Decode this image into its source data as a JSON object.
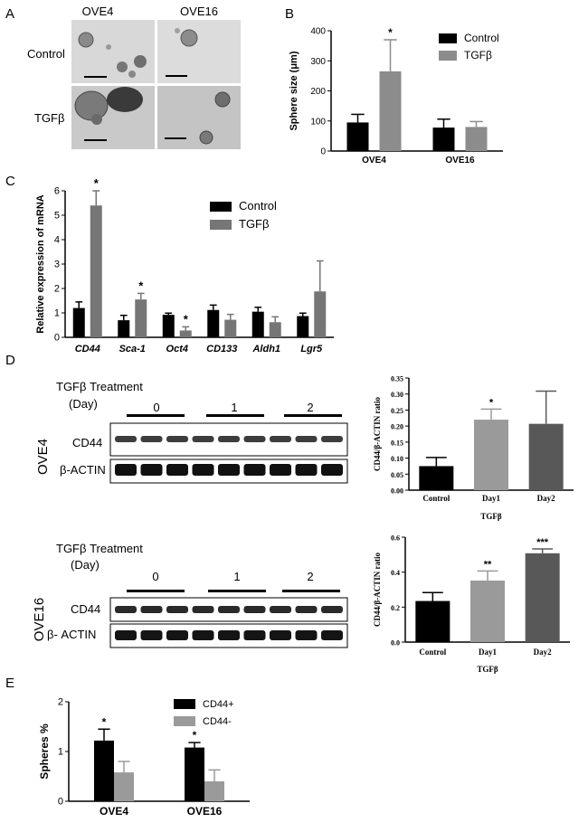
{
  "panel_letters": [
    "A",
    "B",
    "C",
    "D",
    "E"
  ],
  "panelA": {
    "columns": [
      "OVE4",
      "OVE16"
    ],
    "rows": [
      "Control",
      "TGFβ"
    ]
  },
  "panelD": {
    "top": {
      "cell_line": "OVE4",
      "treatment_label": "TGFβ Treatment",
      "day_label": "(Day)",
      "days": [
        "0",
        "1",
        "2"
      ],
      "bands": [
        "CD44",
        "β-ACTIN"
      ]
    },
    "bottom": {
      "cell_line": "OVE16",
      "treatment_label": "TGFβ Treatment",
      "day_label": "(Day)",
      "days": [
        "0",
        "1",
        "2"
      ],
      "bands": [
        "CD44",
        "β- ACTIN"
      ]
    }
  },
  "chart_data": [
    {
      "id": "B",
      "type": "bar",
      "ylabel": "Sphere size (μm)",
      "categories": [
        "OVE4",
        "OVE16"
      ],
      "ylim": [
        0,
        400
      ],
      "yticks": [
        0,
        100,
        200,
        300,
        400
      ],
      "legend": "top-right",
      "series": [
        {
          "name": "Control",
          "color": "#000000",
          "values": [
            95,
            78
          ],
          "errors": [
            27,
            28
          ],
          "sig": [
            "",
            ""
          ]
        },
        {
          "name": "TGFβ",
          "color": "#8c8c8c",
          "values": [
            265,
            80
          ],
          "errors": [
            105,
            18
          ],
          "sig": [
            "*",
            ""
          ]
        }
      ]
    },
    {
      "id": "C",
      "type": "bar",
      "ylabel": "Relative expression of mRNA",
      "categories": [
        "CD44",
        "Sca-1",
        "Oct4",
        "CD133",
        "Aldh1",
        "Lgr5"
      ],
      "ylim": [
        0,
        6
      ],
      "yticks": [
        0,
        1,
        2,
        3,
        4,
        5,
        6
      ],
      "legend": "top-right",
      "series": [
        {
          "name": "Control",
          "color": "#000000",
          "values": [
            1.2,
            0.7,
            0.92,
            1.12,
            1.05,
            0.87
          ],
          "errors": [
            0.25,
            0.2,
            0.07,
            0.2,
            0.18,
            0.12
          ],
          "sig": [
            "",
            "",
            "",
            "",
            "",
            ""
          ]
        },
        {
          "name": "TGFβ",
          "color": "#767676",
          "values": [
            5.4,
            1.55,
            0.28,
            0.72,
            0.62,
            1.88
          ],
          "errors": [
            0.6,
            0.25,
            0.15,
            0.22,
            0.22,
            1.25
          ],
          "sig": [
            "*",
            "*",
            "*",
            "",
            "",
            ""
          ]
        }
      ]
    },
    {
      "id": "D-OVE4",
      "type": "bar",
      "ylabel": "CD44/β-ACTIN ratio",
      "xlabel": "TGFβ",
      "categories": [
        "Control",
        "Day1",
        "Day2"
      ],
      "ylim": [
        0,
        0.35
      ],
      "yticks": [
        0.0,
        0.05,
        0.1,
        0.15,
        0.2,
        0.25,
        0.3,
        0.35
      ],
      "tickDecimals": 2,
      "series": [
        {
          "name": "",
          "colors": [
            "#000000",
            "#9a9a9a",
            "#585858"
          ],
          "values": [
            0.075,
            0.22,
            0.207
          ],
          "errors": [
            0.027,
            0.033,
            0.102
          ],
          "sig": [
            "",
            "*",
            ""
          ]
        }
      ]
    },
    {
      "id": "D-OVE16",
      "type": "bar",
      "ylabel": "CD44/β-ACTIN ratio",
      "xlabel": "TGFβ",
      "categories": [
        "Control",
        "Day1",
        "Day2"
      ],
      "ylim": [
        0,
        0.6
      ],
      "yticks": [
        0.0,
        0.2,
        0.4,
        0.6
      ],
      "tickDecimals": 1,
      "series": [
        {
          "name": "",
          "colors": [
            "#000000",
            "#9a9a9a",
            "#585858"
          ],
          "values": [
            0.235,
            0.352,
            0.508
          ],
          "errors": [
            0.048,
            0.055,
            0.025
          ],
          "sig": [
            "",
            "**",
            "***"
          ]
        }
      ]
    },
    {
      "id": "E",
      "type": "bar",
      "ylabel": "Spheres %",
      "categories": [
        "OVE4",
        "OVE16"
      ],
      "ylim": [
        0,
        2
      ],
      "yticks": [
        0,
        1,
        2
      ],
      "legend": "top-right",
      "series": [
        {
          "name": "CD44+",
          "color": "#000000",
          "values": [
            1.22,
            1.08
          ],
          "errors": [
            0.23,
            0.1
          ],
          "sig": [
            "*",
            "*"
          ]
        },
        {
          "name": "CD44-",
          "color": "#9a9a9a",
          "values": [
            0.58,
            0.4
          ],
          "errors": [
            0.22,
            0.23
          ],
          "sig": [
            "",
            ""
          ]
        }
      ]
    }
  ]
}
